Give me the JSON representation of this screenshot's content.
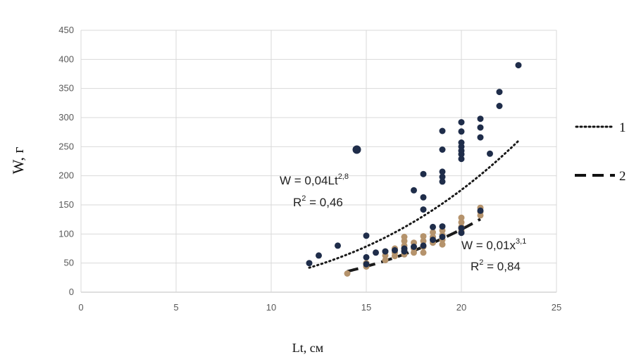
{
  "chart_data": {
    "type": "scatter",
    "xlabel": "Lt, см",
    "ylabel": "W, г",
    "xlim": [
      0,
      25
    ],
    "ylim": [
      0,
      450
    ],
    "x_ticks": [
      "0",
      "5",
      "10",
      "15",
      "20",
      "25"
    ],
    "y_ticks": [
      "0",
      "50",
      "100",
      "150",
      "200",
      "250",
      "300",
      "350",
      "400",
      "450"
    ],
    "grid": "on",
    "legend_placement": "right",
    "series": [
      {
        "name": "1",
        "color": "#1f2d4a",
        "points": [
          [
            12,
            50
          ],
          [
            12.5,
            63
          ],
          [
            13.5,
            80
          ],
          [
            14.5,
            245
          ],
          [
            15,
            97
          ],
          [
            15,
            60
          ],
          [
            15,
            48
          ],
          [
            15.5,
            68
          ],
          [
            16,
            70
          ],
          [
            16.5,
            72
          ],
          [
            17,
            75
          ],
          [
            17,
            70
          ],
          [
            17.5,
            175
          ],
          [
            17.5,
            78
          ],
          [
            18,
            203
          ],
          [
            18,
            163
          ],
          [
            18,
            142
          ],
          [
            18,
            80
          ],
          [
            18.5,
            112
          ],
          [
            18.5,
            90
          ],
          [
            19,
            277
          ],
          [
            19,
            245
          ],
          [
            19,
            207
          ],
          [
            19,
            198
          ],
          [
            19,
            190
          ],
          [
            19,
            113
          ],
          [
            19,
            95
          ],
          [
            20,
            292
          ],
          [
            20,
            276
          ],
          [
            20,
            257
          ],
          [
            20,
            250
          ],
          [
            20,
            243
          ],
          [
            20,
            237
          ],
          [
            20,
            229
          ],
          [
            20,
            110
          ],
          [
            20,
            102
          ],
          [
            21,
            298
          ],
          [
            21,
            283
          ],
          [
            21,
            266
          ],
          [
            21,
            140
          ],
          [
            21.5,
            238
          ],
          [
            22,
            344
          ],
          [
            22,
            320
          ],
          [
            23,
            390
          ]
        ]
      },
      {
        "name": "2",
        "color": "#b5936c",
        "points": [
          [
            14,
            32
          ],
          [
            15,
            44
          ],
          [
            15,
            50
          ],
          [
            16,
            55
          ],
          [
            16,
            63
          ],
          [
            16,
            70
          ],
          [
            16.5,
            62
          ],
          [
            16.5,
            68
          ],
          [
            16.5,
            75
          ],
          [
            17,
            65
          ],
          [
            17,
            72
          ],
          [
            17,
            80
          ],
          [
            17,
            88
          ],
          [
            17,
            95
          ],
          [
            17.5,
            68
          ],
          [
            17.5,
            75
          ],
          [
            17.5,
            85
          ],
          [
            18,
            68
          ],
          [
            18,
            78
          ],
          [
            18,
            88
          ],
          [
            18,
            96
          ],
          [
            18.5,
            85
          ],
          [
            18.5,
            95
          ],
          [
            18.5,
            103
          ],
          [
            19,
            82
          ],
          [
            19,
            90
          ],
          [
            19,
            98
          ],
          [
            19,
            106
          ],
          [
            20,
            105
          ],
          [
            20,
            112
          ],
          [
            20,
            120
          ],
          [
            20,
            128
          ],
          [
            21,
            132
          ],
          [
            21,
            138
          ],
          [
            21,
            145
          ]
        ]
      }
    ],
    "trendlines": [
      {
        "series": "1",
        "style": "dotted",
        "a": 0.04,
        "b": 2.8,
        "x_from": 12,
        "x_to": 23
      },
      {
        "series": "2",
        "style": "dashed",
        "a": 0.01,
        "b": 3.1,
        "x_from": 14,
        "x_to": 21
      }
    ],
    "annotations": [
      {
        "id": "eq1",
        "main": "W = 0,04Lt",
        "sup": "2,8",
        "r2_label": "R",
        "r2_sup": "2",
        "r2_value": " = 0,46"
      },
      {
        "id": "eq2",
        "main": "W = 0,01x",
        "sup": "3,1",
        "r2_label": "R",
        "r2_sup": "2",
        "r2_value": " = 0,84"
      }
    ]
  }
}
